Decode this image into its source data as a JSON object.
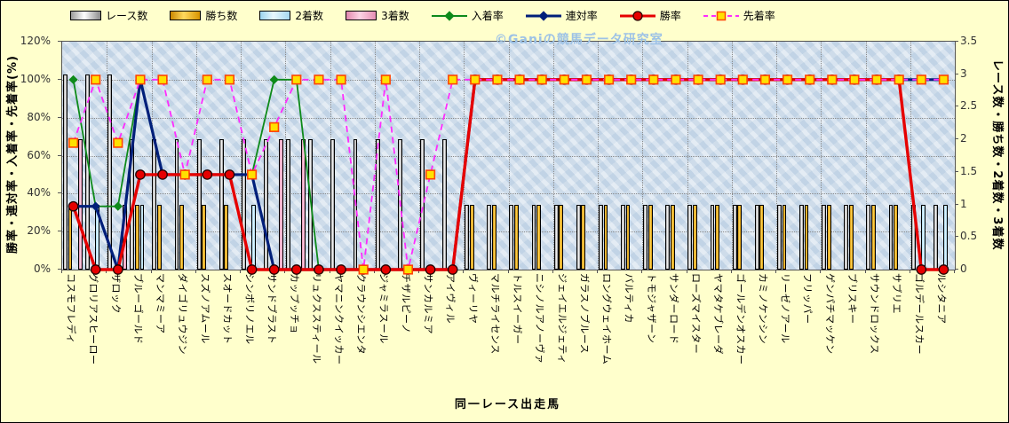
{
  "watermark": "©Ganiの競馬データ研究室",
  "axes": {
    "left": {
      "title": "勝率・連対率・入着率・先着率(%)",
      "ticks": [
        "0%",
        "20%",
        "40%",
        "60%",
        "80%",
        "100%",
        "120%"
      ],
      "max": 120
    },
    "right": {
      "title": "レース数・勝ち数・2着数・3着数",
      "ticks": [
        "0",
        "0.5",
        "1",
        "1.5",
        "2",
        "2.5",
        "3",
        "3.5"
      ],
      "max": 3.5
    },
    "x": {
      "title": "同一レース出走馬"
    }
  },
  "legend": [
    {
      "label": "レース数",
      "kind": "bar",
      "series": "race_count"
    },
    {
      "label": "勝ち数",
      "kind": "bar",
      "series": "win_count"
    },
    {
      "label": "2着数",
      "kind": "bar",
      "series": "second_count"
    },
    {
      "label": "3着数",
      "kind": "bar",
      "series": "third_count"
    },
    {
      "label": "入着率",
      "kind": "line",
      "series": "place_rate"
    },
    {
      "label": "連対率",
      "kind": "line",
      "series": "quinella_rate"
    },
    {
      "label": "勝率",
      "kind": "line",
      "series": "win_rate"
    },
    {
      "label": "先着率",
      "kind": "line",
      "series": "finish_first_rate"
    }
  ],
  "colors": {
    "background": "#FFFFCC",
    "plot_bg": "#CDDCEB",
    "grid": "#8A8A8A",
    "watermark": "#9DC2E6",
    "race_count": "#F0F0F0",
    "win_count": "#FFB900",
    "second_count": "#CDEEFC",
    "third_count": "#F2A6C4",
    "place_rate": "#0D8A1A",
    "quinella_rate": "#001F7A",
    "win_rate": "#E60000",
    "finish_first_rate": "#FF2BFF",
    "marker_square_fill": "#FFE100",
    "marker_square_edge": "#FF4400"
  },
  "chart_data": {
    "type": "combo-bar-line",
    "title": "",
    "xlabel": "同一レース出走馬",
    "left_axis_max": 120,
    "right_axis_max": 3.5,
    "grid": true,
    "legend_position": "top",
    "categories": [
      "コスモフレディ",
      "グロリアスヒーロー",
      "ザロック",
      "ブルーゴールド",
      "マンマミーア",
      "ダイゴリュウジン",
      "スズノアムール",
      "スオードカット",
      "シンボリノエル",
      "サンドブラスト",
      "カップッチョ",
      "リュクススティール",
      "ヤマニンクイッカー",
      "クラウンシエンタ",
      "ジャミラスール",
      "チザルピーノ",
      "サンカルミア",
      "アイヴィル",
      "ヴィーリヤ",
      "マルチライセンス",
      "トルスイーガー",
      "ニシノルアノーヴァ",
      "ジェイエルジェティ",
      "ガラスノブルース",
      "ロングウェイホーム",
      "バルティカ",
      "トモジャザーン",
      "サンダーロード",
      "ローズマイスター",
      "ヤマタケブレーダ",
      "ゴールデンオスカー",
      "カミノケンシン",
      "リーゼノアール",
      "フリッパー",
      "ゲンパチマッケン",
      "ブリスキー",
      "サウンドロックス",
      "サブリエ",
      "ゴルデールスカー",
      "ルシタニア"
    ],
    "bar_series": [
      {
        "name": "レース数",
        "series": "race_count",
        "axis": "right",
        "values": [
          3,
          3,
          3,
          2,
          2,
          2,
          2,
          2,
          2,
          2,
          2,
          2,
          2,
          2,
          2,
          2,
          2,
          2,
          1,
          1,
          1,
          1,
          1,
          1,
          1,
          1,
          1,
          1,
          1,
          1,
          1,
          1,
          1,
          1,
          1,
          1,
          1,
          1,
          1,
          1
        ]
      },
      {
        "name": "勝ち数",
        "series": "win_count",
        "axis": "right",
        "values": [
          1,
          0,
          0,
          1,
          1,
          1,
          1,
          1,
          0,
          0,
          0,
          0,
          0,
          0,
          0,
          0,
          0,
          0,
          1,
          1,
          1,
          1,
          1,
          1,
          1,
          1,
          1,
          1,
          1,
          1,
          1,
          1,
          1,
          1,
          1,
          1,
          1,
          1,
          0,
          0
        ]
      },
      {
        "name": "2着数",
        "series": "second_count",
        "axis": "right",
        "values": [
          0,
          1,
          0,
          1,
          0,
          0,
          0,
          0,
          1,
          0,
          0,
          0,
          0,
          0,
          0,
          0,
          0,
          0,
          0,
          0,
          0,
          0,
          0,
          0,
          0,
          0,
          0,
          0,
          0,
          0,
          0,
          0,
          0,
          0,
          0,
          0,
          0,
          0,
          1,
          1
        ]
      },
      {
        "name": "3着数",
        "series": "third_count",
        "axis": "right",
        "values": [
          2,
          0,
          1,
          0,
          0,
          0,
          0,
          0,
          0,
          2,
          2,
          0,
          0,
          0,
          0,
          0,
          0,
          0,
          0,
          0,
          0,
          0,
          0,
          0,
          0,
          0,
          0,
          0,
          0,
          0,
          0,
          0,
          0,
          0,
          0,
          0,
          0,
          0,
          0,
          0
        ]
      }
    ],
    "line_series": [
      {
        "name": "入着率",
        "series": "place_rate",
        "axis": "left",
        "marker": "diamond",
        "dashed": false,
        "width": 1.8,
        "values": [
          100,
          33.3,
          33.3,
          100,
          50,
          50,
          50,
          50,
          50,
          100,
          100,
          0,
          0,
          0,
          0,
          0,
          0,
          0,
          100,
          100,
          100,
          100,
          100,
          100,
          100,
          100,
          100,
          100,
          100,
          100,
          100,
          100,
          100,
          100,
          100,
          100,
          100,
          100,
          100,
          100
        ]
      },
      {
        "name": "連対率",
        "series": "quinella_rate",
        "axis": "left",
        "marker": "diamond",
        "dashed": false,
        "width": 3.2,
        "values": [
          33.3,
          33.3,
          0,
          100,
          50,
          50,
          50,
          50,
          50,
          0,
          0,
          0,
          0,
          0,
          0,
          0,
          0,
          0,
          100,
          100,
          100,
          100,
          100,
          100,
          100,
          100,
          100,
          100,
          100,
          100,
          100,
          100,
          100,
          100,
          100,
          100,
          100,
          100,
          100,
          100
        ]
      },
      {
        "name": "勝率",
        "series": "win_rate",
        "axis": "left",
        "marker": "circle",
        "dashed": false,
        "width": 3.4,
        "values": [
          33.3,
          0,
          0,
          50,
          50,
          50,
          50,
          50,
          0,
          0,
          0,
          0,
          0,
          0,
          0,
          0,
          0,
          0,
          100,
          100,
          100,
          100,
          100,
          100,
          100,
          100,
          100,
          100,
          100,
          100,
          100,
          100,
          100,
          100,
          100,
          100,
          100,
          100,
          0,
          0
        ]
      },
      {
        "name": "先着率",
        "series": "finish_first_rate",
        "axis": "left",
        "marker": "square",
        "dashed": true,
        "width": 1.8,
        "values": [
          66.7,
          100,
          66.7,
          100,
          100,
          50,
          100,
          100,
          50,
          75,
          100,
          100,
          100,
          0,
          100,
          0,
          50,
          100,
          100,
          100,
          100,
          100,
          100,
          100,
          100,
          100,
          100,
          100,
          100,
          100,
          100,
          100,
          100,
          100,
          100,
          100,
          100,
          100,
          100,
          100
        ]
      }
    ]
  }
}
